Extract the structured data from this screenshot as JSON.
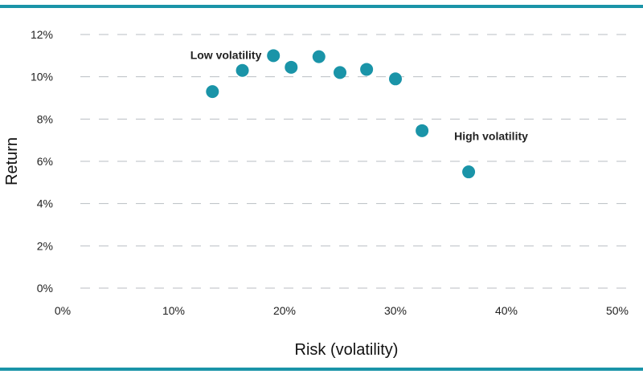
{
  "chart_data": {
    "type": "scatter",
    "xlabel": "Risk (volatility)",
    "ylabel": "Return",
    "xlim": [
      0,
      50
    ],
    "ylim": [
      0,
      12
    ],
    "x_ticks": [
      0,
      10,
      20,
      30,
      40,
      50
    ],
    "y_ticks": [
      0,
      2,
      4,
      6,
      8,
      10,
      12
    ],
    "x_tick_labels": [
      "0%",
      "10%",
      "20%",
      "30%",
      "40%",
      "50%"
    ],
    "y_tick_labels": [
      "0%",
      "2%",
      "4%",
      "6%",
      "8%",
      "10%",
      "12%"
    ],
    "grid": "horizontal-dashed",
    "series": [
      {
        "points": [
          {
            "x": 13.5,
            "y": 9.3
          },
          {
            "x": 16.2,
            "y": 10.3
          },
          {
            "x": 19.0,
            "y": 11.0
          },
          {
            "x": 20.6,
            "y": 10.45
          },
          {
            "x": 23.1,
            "y": 10.95
          },
          {
            "x": 25.0,
            "y": 10.2
          },
          {
            "x": 27.4,
            "y": 10.35
          },
          {
            "x": 30.0,
            "y": 9.9
          },
          {
            "x": 32.4,
            "y": 7.45
          },
          {
            "x": 36.6,
            "y": 5.5
          }
        ]
      }
    ],
    "annotations": [
      {
        "text": "Low volatility",
        "x": 11.5,
        "y": 10.85
      },
      {
        "text": "High volatility",
        "x": 35.3,
        "y": 7.0
      }
    ],
    "colors": {
      "marker": "#1a94a8",
      "rule": "#1a94a8",
      "grid": "#b9bec3"
    }
  }
}
